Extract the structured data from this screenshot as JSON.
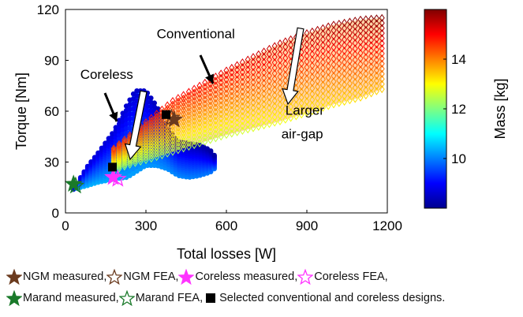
{
  "chart_data": {
    "type": "scatter",
    "xlabel": "Total losses [W]",
    "ylabel": "Torque [Nm]",
    "xlim": [
      0,
      1200
    ],
    "ylim": [
      0,
      120
    ],
    "x_ticks": [
      "0",
      "300",
      "600",
      "900",
      "1200"
    ],
    "y_ticks": [
      "0",
      "30",
      "60",
      "90",
      "120"
    ],
    "colorbar": {
      "label": "Mass [kg]",
      "range": [
        8,
        16
      ],
      "ticks": [
        "10",
        "12",
        "14"
      ],
      "colormap": "jet"
    },
    "regions": [
      {
        "name": "Coreless",
        "marker": "hexagram-filled",
        "mass_range_kg": [
          8.3,
          11
        ],
        "x": [
          30,
          80,
          120,
          180,
          230,
          260,
          300,
          340,
          380,
          420,
          460,
          500,
          540,
          555
        ],
        "upper_y": [
          14,
          27,
          35,
          48,
          64,
          72,
          72,
          63,
          50,
          42,
          41,
          40,
          37,
          34
        ],
        "lower_y": [
          14,
          16,
          18,
          20,
          21,
          24,
          28,
          28,
          26,
          22,
          21,
          22,
          24,
          26
        ]
      },
      {
        "name": "Conventional",
        "marker": "diamond-open",
        "mass_range_kg": [
          12,
          16
        ],
        "x": [
          180,
          250,
          320,
          400,
          500,
          600,
          700,
          800,
          900,
          1000,
          1100,
          1180
        ],
        "upper_y": [
          38,
          47,
          56,
          66,
          75,
          84,
          92,
          100,
          106,
          111,
          114,
          115
        ],
        "lower_y": [
          25,
          29,
          32,
          36,
          41,
          46,
          50,
          54,
          59,
          64,
          68,
          73
        ]
      }
    ],
    "points": [
      {
        "name": "NGM measured",
        "x": 405,
        "y": 55
      },
      {
        "name": "NGM FEA",
        "x": 395,
        "y": 56
      },
      {
        "name": "Coreless measured",
        "x": 178,
        "y": 21
      },
      {
        "name": "Coreless FEA",
        "x": 195,
        "y": 20
      },
      {
        "name": "Marand measured",
        "x": 30,
        "y": 17
      },
      {
        "name": "Marand FEA",
        "x": 38,
        "y": 16
      },
      {
        "name": "Selected conventional design",
        "x": 375,
        "y": 58
      },
      {
        "name": "Selected coreless design",
        "x": 175,
        "y": 27
      }
    ],
    "annotations": [
      {
        "text": "Conventional",
        "x": 340,
        "y": 103
      },
      {
        "text": "Coreless",
        "x": 55,
        "y": 79
      },
      {
        "text": "Larger",
        "x": 820,
        "y": 58
      },
      {
        "text": "air-gap",
        "x": 805,
        "y": 44
      }
    ]
  },
  "legend": {
    "row1": [
      {
        "label": "NGM measured,",
        "marker": "star-filled",
        "color": "#6b3b1f"
      },
      {
        "label": "NGM FEA,",
        "marker": "star-open",
        "color": "#6b3b1f"
      },
      {
        "label": "Coreless measured,",
        "marker": "star-filled",
        "color": "#ff33ff"
      },
      {
        "label": "Coreless FEA,",
        "marker": "star-open",
        "color": "#ff33ff"
      }
    ],
    "row2": [
      {
        "label": "Marand  measured,",
        "marker": "star-filled",
        "color": "#1a7a2a"
      },
      {
        "label": "Marand FEA,",
        "marker": "star-open",
        "color": "#1a7a2a"
      },
      {
        "label": "Selected conventional and coreless designs.",
        "marker": "square-filled",
        "color": "#000000"
      }
    ]
  }
}
